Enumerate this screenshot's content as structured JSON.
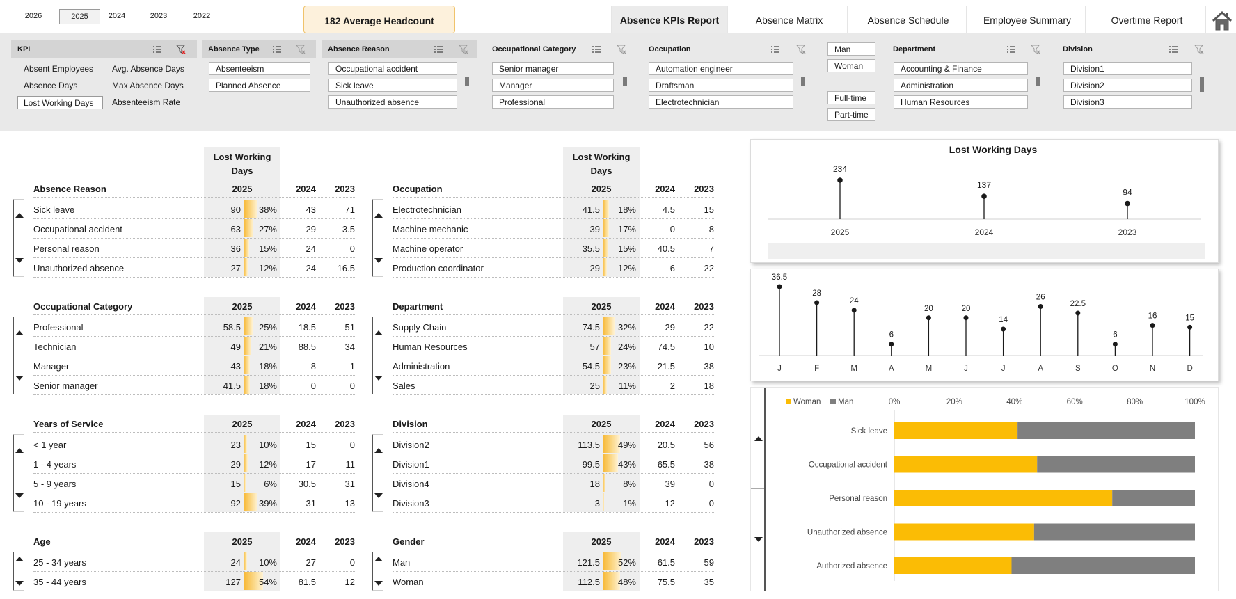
{
  "years": {
    "items": [
      "2026",
      "2025",
      "2024",
      "2023",
      "2022"
    ],
    "selected": "2025"
  },
  "headcount": "182 Average Headcount",
  "tabs": [
    "Absence KPIs Report",
    "Absence Matrix",
    "Absence Schedule",
    "Employee Summary",
    "Overtime Report"
  ],
  "home_icon": "home-icon",
  "filters": {
    "kpi": {
      "title": "KPI",
      "items": [
        "Absent Employees",
        "Avg. Absence Days",
        "Absence Days",
        "Max Absence Days",
        "Lost Working Days",
        "Absenteeism Rate"
      ],
      "selected": "Lost Working Days"
    },
    "absence_type": {
      "title": "Absence Type",
      "items": [
        "Absenteeism",
        "Planned Absence"
      ]
    },
    "absence_reason": {
      "title": "Absence Reason",
      "items": [
        "Occupational accident",
        "Sick leave",
        "Unauthorized absence"
      ]
    },
    "occupational_category": {
      "title": "Occupational Category",
      "items": [
        "Senior manager",
        "Manager",
        "Professional"
      ]
    },
    "occupation": {
      "title": "Occupation",
      "items": [
        "Automation engineer",
        "Draftsman",
        "Electrotechnician"
      ]
    },
    "gender": {
      "items": [
        "Man",
        "Woman"
      ]
    },
    "employment": {
      "items": [
        "Full-time",
        "Part-time"
      ]
    },
    "department": {
      "title": "Department",
      "items": [
        "Accounting & Finance",
        "Administration",
        "Human Resources"
      ]
    },
    "division": {
      "title": "Division",
      "items": [
        "Division1",
        "Division2",
        "Division3"
      ]
    }
  },
  "kpi_header": "Lost Working Days",
  "col_years": [
    "2025",
    "2024",
    "2023"
  ],
  "tables": [
    {
      "title": "Absence Reason",
      "show_kpi": true,
      "rows": [
        {
          "label": "Sick leave",
          "v2025": "90",
          "pct": "38%",
          "pctv": 0.38,
          "v2024": "43",
          "v2023": "71"
        },
        {
          "label": "Occupational accident",
          "v2025": "63",
          "pct": "27%",
          "pctv": 0.27,
          "v2024": "29",
          "v2023": "3.5"
        },
        {
          "label": "Personal reason",
          "v2025": "36",
          "pct": "15%",
          "pctv": 0.15,
          "v2024": "24",
          "v2023": "0"
        },
        {
          "label": "Unauthorized absence",
          "v2025": "27",
          "pct": "12%",
          "pctv": 0.12,
          "v2024": "24",
          "v2023": "16.5"
        }
      ]
    },
    {
      "title": "Occupation",
      "show_kpi": true,
      "rows": [
        {
          "label": "Electrotechnician",
          "v2025": "41.5",
          "pct": "18%",
          "pctv": 0.18,
          "v2024": "4.5",
          "v2023": "15"
        },
        {
          "label": "Machine mechanic",
          "v2025": "39",
          "pct": "17%",
          "pctv": 0.17,
          "v2024": "0",
          "v2023": "8"
        },
        {
          "label": "Machine operator",
          "v2025": "35.5",
          "pct": "15%",
          "pctv": 0.15,
          "v2024": "40.5",
          "v2023": "7"
        },
        {
          "label": "Production coordinator",
          "v2025": "29",
          "pct": "12%",
          "pctv": 0.12,
          "v2024": "6",
          "v2023": "22"
        }
      ]
    },
    {
      "title": "Occupational Category",
      "rows": [
        {
          "label": "Professional",
          "v2025": "58.5",
          "pct": "25%",
          "pctv": 0.25,
          "v2024": "18.5",
          "v2023": "51"
        },
        {
          "label": "Technician",
          "v2025": "49",
          "pct": "21%",
          "pctv": 0.21,
          "v2024": "88.5",
          "v2023": "34"
        },
        {
          "label": "Manager",
          "v2025": "43",
          "pct": "18%",
          "pctv": 0.18,
          "v2024": "8",
          "v2023": "1"
        },
        {
          "label": "Senior manager",
          "v2025": "41.5",
          "pct": "18%",
          "pctv": 0.18,
          "v2024": "0",
          "v2023": "0"
        }
      ]
    },
    {
      "title": "Department",
      "rows": [
        {
          "label": "Supply Chain",
          "v2025": "74.5",
          "pct": "32%",
          "pctv": 0.32,
          "v2024": "29",
          "v2023": "22"
        },
        {
          "label": "Human Resources",
          "v2025": "57",
          "pct": "24%",
          "pctv": 0.24,
          "v2024": "74.5",
          "v2023": "10"
        },
        {
          "label": "Administration",
          "v2025": "54.5",
          "pct": "23%",
          "pctv": 0.23,
          "v2024": "21.5",
          "v2023": "38"
        },
        {
          "label": "Sales",
          "v2025": "25",
          "pct": "11%",
          "pctv": 0.11,
          "v2024": "2",
          "v2023": "18"
        }
      ]
    },
    {
      "title": "Years of Service",
      "rows": [
        {
          "label": "< 1 year",
          "v2025": "23",
          "pct": "10%",
          "pctv": 0.1,
          "v2024": "15",
          "v2023": "0"
        },
        {
          "label": "1 - 4 years",
          "v2025": "29",
          "pct": "12%",
          "pctv": 0.12,
          "v2024": "17",
          "v2023": "11"
        },
        {
          "label": "5 - 9 years",
          "v2025": "15",
          "pct": "6%",
          "pctv": 0.06,
          "v2024": "30.5",
          "v2023": "31"
        },
        {
          "label": "10 - 19 years",
          "v2025": "92",
          "pct": "39%",
          "pctv": 0.39,
          "v2024": "31",
          "v2023": "13"
        }
      ]
    },
    {
      "title": "Division",
      "rows": [
        {
          "label": "Division2",
          "v2025": "113.5",
          "pct": "49%",
          "pctv": 0.49,
          "v2024": "20.5",
          "v2023": "56"
        },
        {
          "label": "Division1",
          "v2025": "99.5",
          "pct": "43%",
          "pctv": 0.43,
          "v2024": "65.5",
          "v2023": "38"
        },
        {
          "label": "Division4",
          "v2025": "18",
          "pct": "8%",
          "pctv": 0.08,
          "v2024": "39",
          "v2023": "0"
        },
        {
          "label": "Division3",
          "v2025": "3",
          "pct": "1%",
          "pctv": 0.01,
          "v2024": "12",
          "v2023": "0"
        }
      ]
    },
    {
      "title": "Age",
      "rows": [
        {
          "label": "25 - 34 years",
          "v2025": "24",
          "pct": "10%",
          "pctv": 0.1,
          "v2024": "27",
          "v2023": "0"
        },
        {
          "label": "35 - 44 years",
          "v2025": "127",
          "pct": "54%",
          "pctv": 0.54,
          "v2024": "81.5",
          "v2023": "12"
        }
      ]
    },
    {
      "title": "Gender",
      "rows": [
        {
          "label": "Man",
          "v2025": "121.5",
          "pct": "52%",
          "pctv": 0.52,
          "v2024": "61.5",
          "v2023": "59"
        },
        {
          "label": "Woman",
          "v2025": "112.5",
          "pct": "48%",
          "pctv": 0.48,
          "v2024": "75.5",
          "v2023": "35"
        }
      ]
    }
  ],
  "chart_data": [
    {
      "type": "lollipop",
      "title": "Lost Working Days",
      "categories": [
        "2025",
        "2024",
        "2023"
      ],
      "values": [
        234,
        137,
        94
      ]
    },
    {
      "type": "lollipop",
      "title": "",
      "categories": [
        "J",
        "F",
        "M",
        "A",
        "M",
        "J",
        "J",
        "A",
        "S",
        "O",
        "N",
        "D"
      ],
      "values": [
        36.5,
        28,
        24,
        6,
        20,
        20,
        14,
        26,
        22.5,
        6,
        16,
        15
      ]
    },
    {
      "type": "bar",
      "stacked": "percent",
      "orientation": "horizontal",
      "categories": [
        "Sick leave",
        "Occupational accident",
        "Personal reason",
        "Unauthorized absence",
        "Authorized absence"
      ],
      "series": [
        {
          "name": "Woman",
          "values": [
            0.41,
            0.475,
            0.725,
            0.465,
            0.39
          ],
          "color": "#fbbc05"
        },
        {
          "name": "Man",
          "values": [
            0.59,
            0.525,
            0.275,
            0.535,
            0.61
          ],
          "color": "#7f7f7f"
        }
      ],
      "x_ticks": [
        "0%",
        "20%",
        "40%",
        "60%",
        "80%",
        "100%"
      ],
      "legend": "top-left"
    }
  ],
  "colors": {
    "accent": "#fbbc05",
    "man": "#7f7f7f",
    "header_shade": "#eeeeee",
    "panel": "#e9e9e9"
  }
}
